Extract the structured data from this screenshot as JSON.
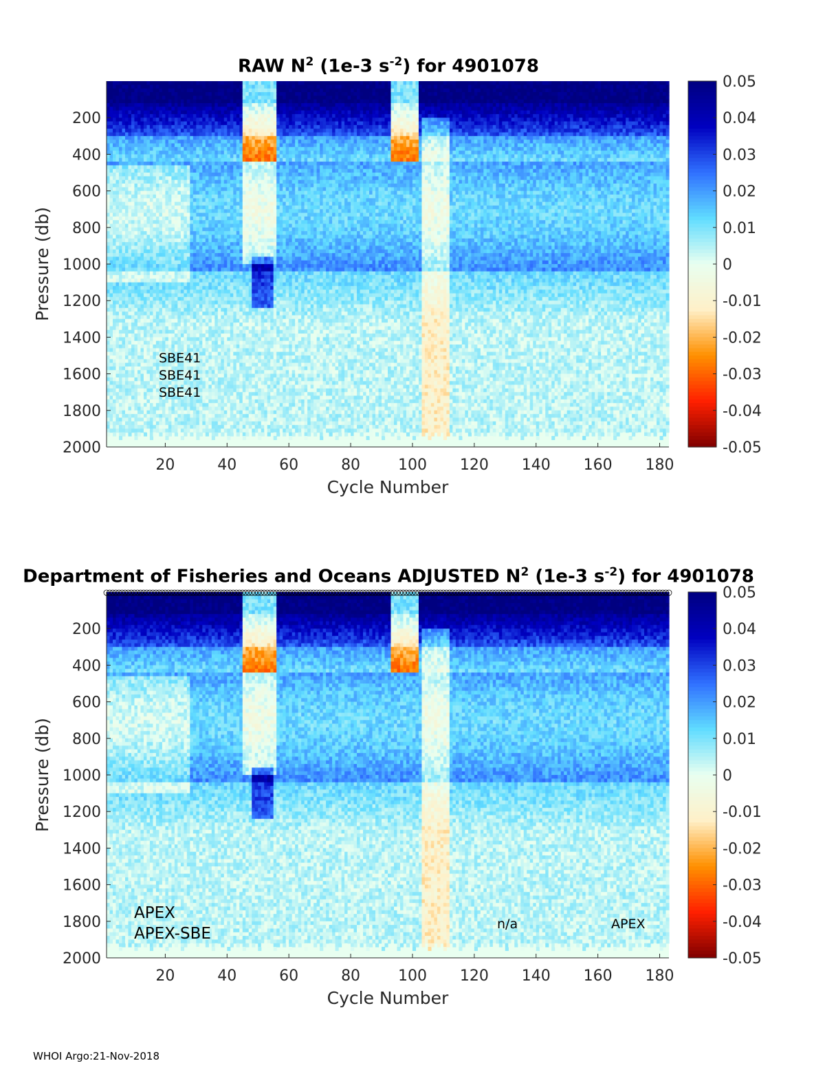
{
  "panels": [
    {
      "title_prefix": "RAW N",
      "title_sup": "2",
      "title_mid": " (1e-3 s",
      "title_sup2": "-2",
      "title_suffix": ") for 4901078",
      "annotations": [
        "SBE41",
        "SBE41",
        "SBE41"
      ],
      "annotations_extra": []
    },
    {
      "title_prefix": "Department of Fisheries and Oceans  ADJUSTED N",
      "title_sup": "2",
      "title_mid": " (1e-3 s",
      "title_sup2": "-2",
      "title_suffix": ") for 4901078",
      "annotations": [
        "APEX",
        "APEX-SBE"
      ],
      "annotations_extra": [
        "n/a",
        "APEX"
      ]
    }
  ],
  "footer": "WHOI Argo:21-Nov-2018",
  "chart_data": [
    {
      "type": "heatmap",
      "title": "RAW N2 (1e-3 s-2) for 4901078",
      "xlabel": "Cycle Number",
      "ylabel": "Pressure (db)",
      "xlim": [
        1,
        183
      ],
      "ylim": [
        0,
        2000
      ],
      "y_reversed": true,
      "xticks": [
        20,
        40,
        60,
        80,
        100,
        120,
        140,
        160,
        180
      ],
      "yticks": [
        200,
        400,
        600,
        800,
        1000,
        1200,
        1400,
        1600,
        1800,
        2000
      ],
      "colorbar": {
        "range": [
          -0.05,
          0.05
        ],
        "ticks": [
          "0.05",
          "0.04",
          "0.03",
          "0.02",
          "0.01",
          "0",
          "-0.01",
          "-0.02",
          "-0.03",
          "-0.04",
          "-0.05"
        ],
        "colormap": [
          "#7f0000",
          "#ff2000",
          "#ff9000",
          "#fff0c8",
          "#e8fff0",
          "#60dcff",
          "#3070ff",
          "#0000c0",
          "#000080"
        ]
      },
      "description_of_field": "Strongly positive (0.04-0.05) in upper 0-300 db, band of ~0.02-0.03 near 600-1000 db, near zero below 1400 db"
    },
    {
      "type": "heatmap",
      "title": "Department of Fisheries and Oceans  ADJUSTED N2 (1e-3 s-2) for 4901078",
      "xlabel": "Cycle Number",
      "ylabel": "Pressure (db)",
      "xlim": [
        1,
        183
      ],
      "ylim": [
        0,
        2000
      ],
      "y_reversed": true,
      "xticks": [
        20,
        40,
        60,
        80,
        100,
        120,
        140,
        160,
        180
      ],
      "yticks": [
        200,
        400,
        600,
        800,
        1000,
        1200,
        1400,
        1600,
        1800,
        2000
      ],
      "colorbar": {
        "range": [
          -0.05,
          0.05
        ],
        "ticks": [
          "0.05",
          "0.04",
          "0.03",
          "0.02",
          "0.01",
          "0",
          "-0.01",
          "-0.02",
          "-0.03",
          "-0.04",
          "-0.05"
        ],
        "colormap": [
          "#7f0000",
          "#ff2000",
          "#ff9000",
          "#fff0c8",
          "#e8fff0",
          "#60dcff",
          "#3070ff",
          "#0000c0",
          "#000080"
        ]
      }
    }
  ]
}
